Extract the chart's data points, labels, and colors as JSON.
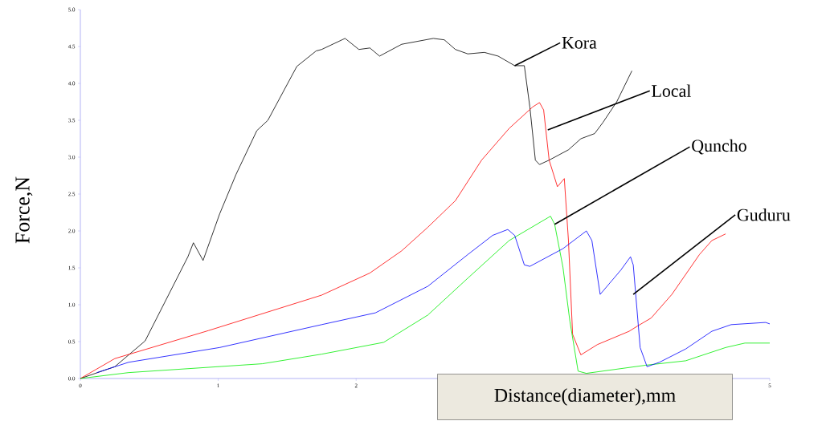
{
  "chart_data": {
    "type": "line",
    "xlabel": "Distance(diameter),mm",
    "ylabel": "Force,N",
    "xlim": [
      0,
      5
    ],
    "ylim": [
      0,
      5
    ],
    "xticks": [
      0,
      1,
      2,
      5
    ],
    "yticks": [
      {
        "value": 0,
        "label": "0.0"
      },
      {
        "value": 0.5,
        "label": "0.5"
      },
      {
        "value": 1,
        "label": "1.0"
      },
      {
        "value": 1.5,
        "label": "1.5"
      },
      {
        "value": 2,
        "label": "2.0"
      },
      {
        "value": 2.5,
        "label": "2.5"
      },
      {
        "value": 3,
        "label": "3.0"
      },
      {
        "value": 3.5,
        "label": "3.5"
      },
      {
        "value": 4,
        "label": "4.0"
      },
      {
        "value": 4.5,
        "label": "4.5"
      },
      {
        "value": 5,
        "label": "5.0"
      }
    ],
    "series": [
      {
        "name": "Kora",
        "color": "#000000",
        "x": [
          0,
          0.25,
          0.47,
          0.78,
          0.82,
          0.89,
          1.01,
          1.13,
          1.28,
          1.36,
          1.57,
          1.71,
          1.75,
          1.92,
          2.02,
          2.1,
          2.17,
          2.33,
          2.56,
          2.64,
          2.72,
          2.81,
          2.93,
          3.03,
          3.15,
          3.22,
          3.26,
          3.3,
          3.33,
          3.4,
          3.54,
          3.63,
          3.73,
          3.79,
          3.89,
          4.0
        ],
        "values": [
          0,
          0.16,
          0.51,
          1.65,
          1.84,
          1.6,
          2.23,
          2.77,
          3.36,
          3.5,
          4.23,
          4.44,
          4.46,
          4.61,
          4.46,
          4.48,
          4.37,
          4.53,
          4.61,
          4.59,
          4.46,
          4.4,
          4.42,
          4.37,
          4.24,
          4.24,
          3.68,
          2.96,
          2.9,
          2.96,
          3.1,
          3.25,
          3.32,
          3.47,
          3.75,
          4.17
        ]
      },
      {
        "name": "Local",
        "color": "#ff0000",
        "x": [
          0,
          0.25,
          0.93,
          1.75,
          2.1,
          2.33,
          2.52,
          2.72,
          2.91,
          3.11,
          3.28,
          3.33,
          3.36,
          3.4,
          3.46,
          3.51,
          3.54,
          3.57,
          3.63,
          3.75,
          3.98,
          4.04,
          4.14,
          4.29,
          4.49,
          4.58,
          4.68
        ],
        "values": [
          0,
          0.27,
          0.65,
          1.13,
          1.43,
          1.73,
          2.05,
          2.41,
          2.96,
          3.39,
          3.68,
          3.74,
          3.64,
          2.96,
          2.6,
          2.71,
          1.87,
          0.6,
          0.32,
          0.46,
          0.64,
          0.71,
          0.82,
          1.14,
          1.68,
          1.87,
          1.96
        ]
      },
      {
        "name": "Quncho",
        "color": "#00ee00",
        "x": [
          0,
          0.35,
          1.32,
          1.75,
          2.2,
          2.52,
          2.81,
          3.11,
          3.41,
          3.44,
          3.5,
          3.55,
          3.61,
          3.67,
          4.1,
          4.39,
          4.68,
          4.82,
          5.0
        ],
        "values": [
          0,
          0.08,
          0.2,
          0.33,
          0.49,
          0.86,
          1.36,
          1.87,
          2.2,
          2.09,
          1.51,
          0.78,
          0.1,
          0.07,
          0.18,
          0.24,
          0.42,
          0.48,
          0.48
        ]
      },
      {
        "name": "Guduru",
        "color": "#0000ff",
        "x": [
          0.12,
          0.35,
          1.01,
          1.75,
          2.14,
          2.52,
          2.81,
          2.99,
          3.1,
          3.15,
          3.22,
          3.26,
          3.5,
          3.67,
          3.71,
          3.77,
          3.92,
          3.99,
          4.01,
          4.06,
          4.11,
          4.2,
          4.39,
          4.58,
          4.72,
          4.97,
          5.0
        ],
        "values": [
          0.08,
          0.22,
          0.42,
          0.73,
          0.89,
          1.25,
          1.68,
          1.94,
          2.02,
          1.94,
          1.54,
          1.52,
          1.76,
          2.0,
          1.87,
          1.14,
          1.47,
          1.65,
          1.54,
          0.42,
          0.16,
          0.22,
          0.4,
          0.64,
          0.73,
          0.76,
          0.74
        ]
      }
    ]
  }
}
